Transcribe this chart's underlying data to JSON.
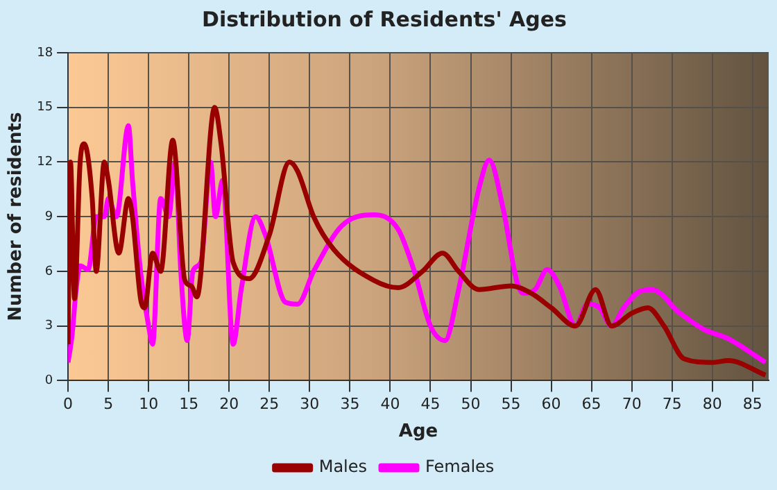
{
  "chart_data": {
    "type": "line",
    "title": "Distribution of Residents' Ages",
    "xlabel": "Age",
    "ylabel": "Number of residents",
    "xlim": [
      0,
      87
    ],
    "xticks": [
      0,
      5,
      10,
      15,
      20,
      25,
      30,
      35,
      40,
      45,
      50,
      55,
      60,
      65,
      70,
      75,
      80,
      85
    ],
    "ylim": [
      0,
      18
    ],
    "yticks": [
      0,
      3,
      6,
      9,
      12,
      15,
      18
    ],
    "grid": true,
    "legend": "bottom",
    "marker": "none",
    "line_style": "solid",
    "series": [
      {
        "name": "Males",
        "color": "#990000",
        "x": [
          0,
          0.3,
          0.8,
          1.5,
          2,
          3,
          3.5,
          4.5,
          5,
          6.3,
          7.5,
          8,
          9,
          9.5,
          10.5,
          11.5,
          13,
          14.5,
          15.3,
          16,
          18.2,
          19,
          20.5,
          22.5,
          25,
          27.5,
          28.5,
          30.5,
          33,
          38,
          41,
          44,
          46.5,
          48.5,
          51,
          55,
          57.5,
          60,
          63,
          65.5,
          67.5,
          70,
          72,
          74,
          76.5,
          80,
          82,
          86.6
        ],
        "values": [
          2,
          12,
          4.5,
          12,
          13,
          10,
          6,
          12,
          11,
          7,
          10,
          9,
          4.5,
          4,
          7,
          6,
          13.2,
          5.5,
          5.2,
          4.6,
          15,
          13,
          6.5,
          5.6,
          8,
          12,
          11.5,
          9,
          7.2,
          5.5,
          5.1,
          6,
          7,
          6,
          5,
          5.2,
          4.8,
          4,
          3,
          5,
          3,
          3.7,
          4,
          3,
          1.2,
          1,
          1.1,
          0.3
        ]
      },
      {
        "name": "Females",
        "color": "#ff00ff",
        "x": [
          0,
          0.5,
          1,
          1.5,
          2.5,
          3.5,
          4.5,
          5,
          6,
          7.5,
          8,
          9,
          10,
          10.5,
          11.5,
          12.5,
          13.3,
          14,
          14.8,
          15.5,
          16.5,
          17.7,
          18.3,
          19.2,
          20.5,
          21.5,
          23.3,
          24.5,
          27,
          28.5,
          30.5,
          34,
          38,
          41,
          43,
          45,
          46.8,
          48.5,
          51,
          52.3,
          54,
          55.7,
          56.5,
          58,
          59.5,
          61,
          63,
          64.5,
          66,
          67.5,
          69,
          71,
          72.5,
          76,
          79,
          82,
          86.6
        ],
        "values": [
          1,
          2.5,
          5,
          6.3,
          6.1,
          9,
          9,
          10,
          9,
          14,
          11,
          6,
          3,
          2,
          10,
          9,
          12,
          6,
          2.2,
          6,
          6.5,
          12,
          9,
          11,
          2,
          5,
          9,
          8,
          4.3,
          4.2,
          6,
          8.5,
          9.1,
          8.3,
          6,
          3,
          2.2,
          5,
          10.5,
          12.1,
          9.5,
          5.5,
          4.8,
          5,
          6.1,
          5.2,
          3,
          4.2,
          4,
          3,
          4,
          4.9,
          5,
          3.7,
          2.8,
          2.3,
          1
        ]
      }
    ]
  }
}
